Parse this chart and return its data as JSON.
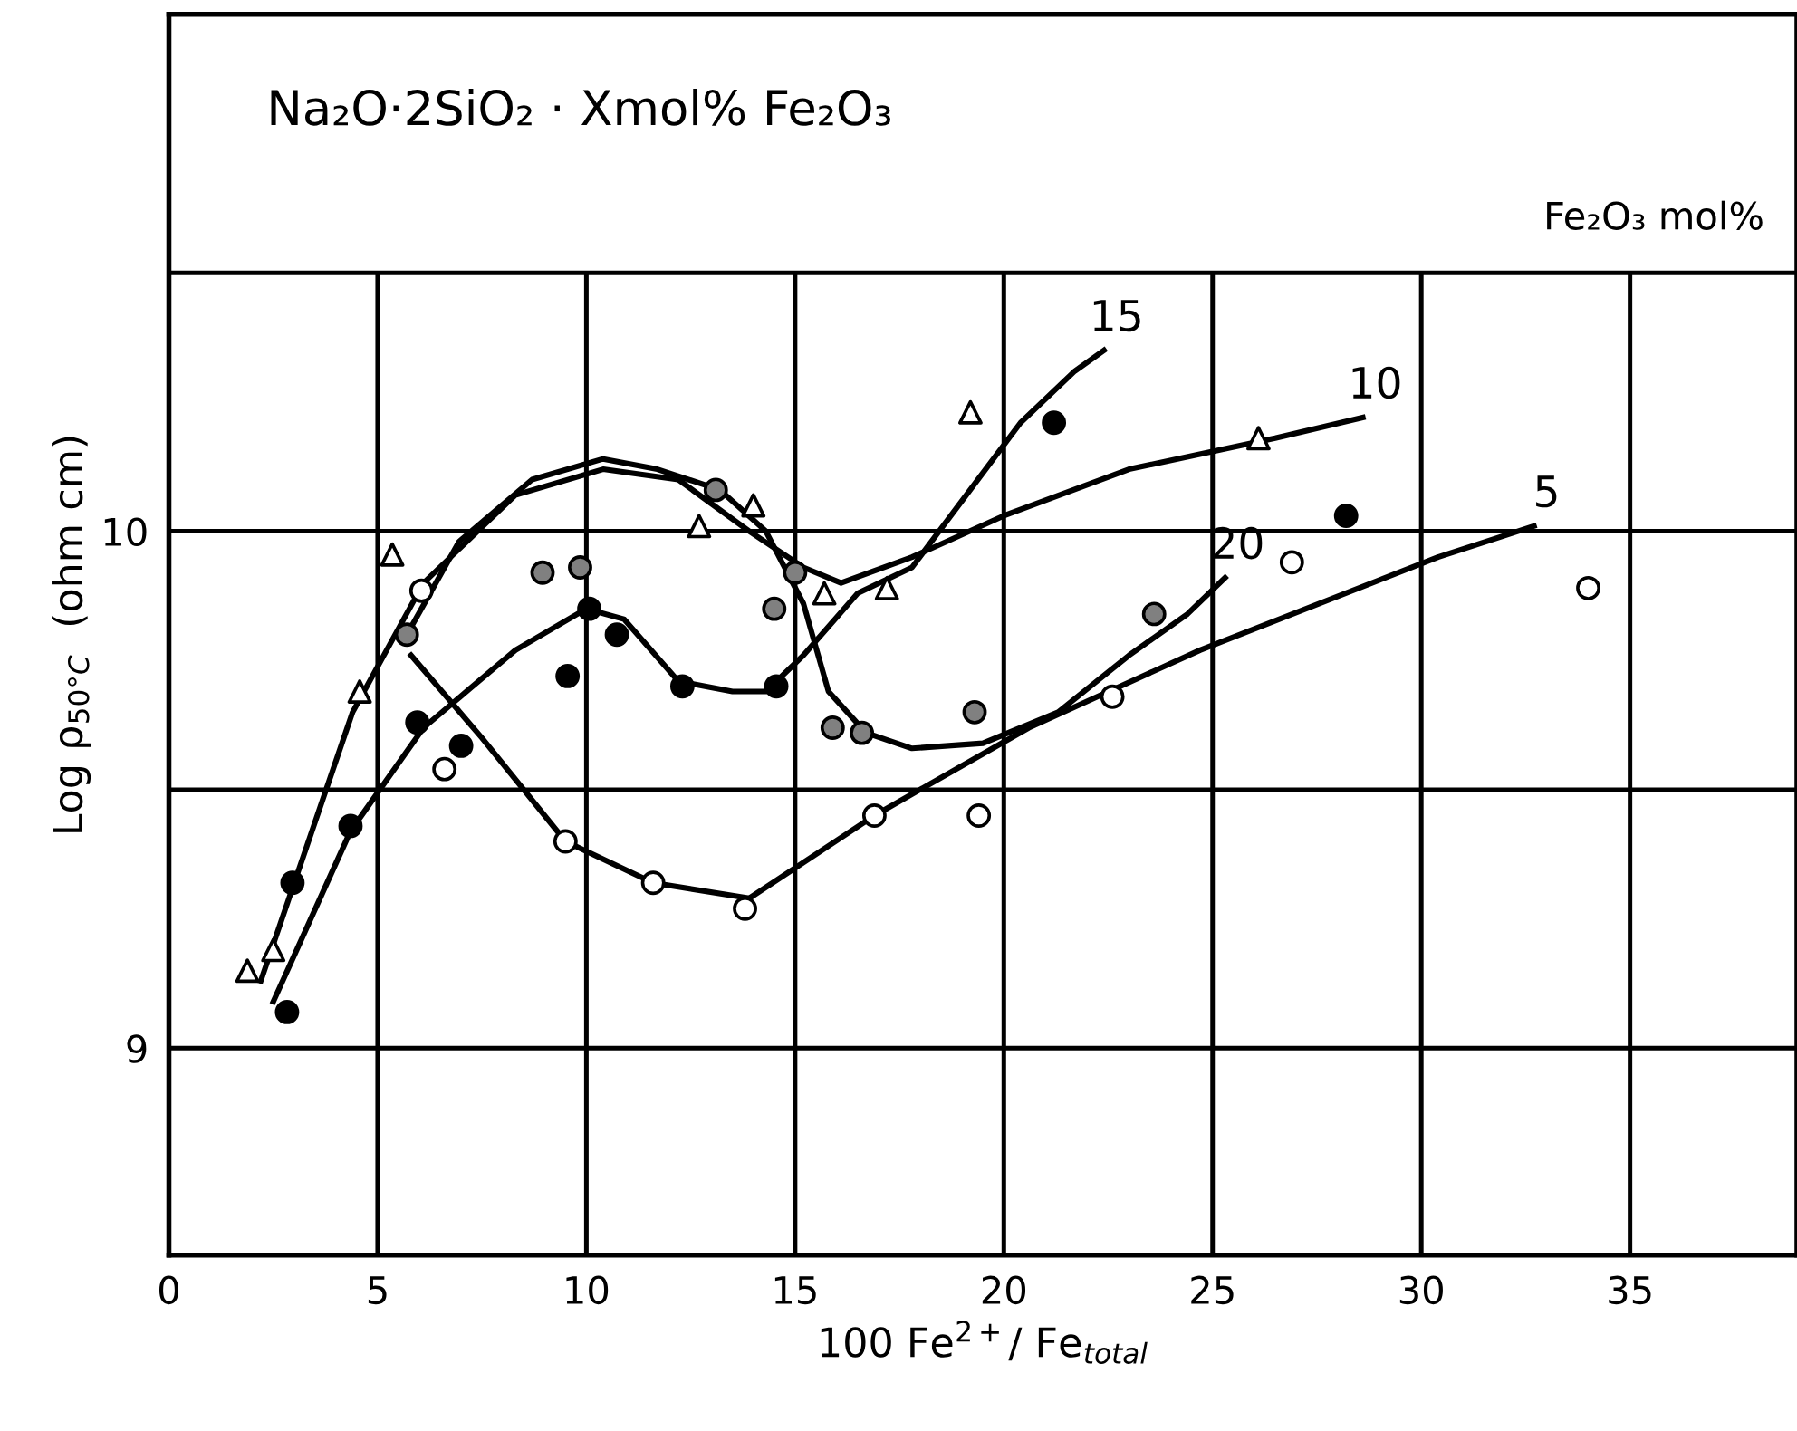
{
  "chart_data": {
    "type": "scatter",
    "title": "Na₂O·2SiO₂ · Xmol% Fe₂O₃",
    "legend_title": "Fe₂O₃ mol%",
    "xlabel": "100 Fe$^{2+}$/ Fe$_{total}$",
    "ylabel": "Log ρ$_{50°C}$  (ohm cm)",
    "xlim": [
      0,
      39
    ],
    "ylim": [
      8.6,
      11
    ],
    "xticks": [
      0,
      5,
      10,
      15,
      20,
      25,
      30,
      35
    ],
    "yticks": [
      9,
      {
        "value": 9.5,
        "label": null
      },
      10,
      {
        "value": 10.5,
        "label": null
      }
    ],
    "grid": true,
    "legend": false,
    "series": [
      {
        "marker": "circle",
        "color": "#ffffff",
        "x": [
          6.05,
          6.6,
          9.5,
          11.6,
          13.8,
          16.9,
          19.4,
          22.6,
          26.9,
          34.0
        ],
        "values": [
          9.885,
          9.54,
          9.4,
          9.32,
          9.27,
          9.45,
          9.45,
          9.68,
          9.94,
          9.89
        ]
      },
      {
        "marker": "triangle",
        "color": "#ffffff",
        "x": [
          1.88,
          2.5,
          4.57,
          5.35,
          12.7,
          14.0,
          15.7,
          17.2,
          19.2,
          26.1
        ],
        "values": [
          9.15,
          9.19,
          9.69,
          9.955,
          10.01,
          10.05,
          9.88,
          9.89,
          10.23,
          10.18
        ]
      },
      {
        "marker": "circle",
        "color": "#000000",
        "x": [
          2.83,
          2.96,
          4.35,
          5.95,
          7.0,
          9.55,
          10.07,
          10.73,
          12.3,
          14.55,
          21.2,
          28.2
        ],
        "values": [
          9.07,
          9.32,
          9.43,
          9.63,
          9.585,
          9.72,
          9.85,
          9.8,
          9.7,
          9.7,
          10.21,
          10.03
        ]
      },
      {
        "marker": "circle",
        "color": "#808080",
        "x": [
          5.7,
          8.95,
          9.85,
          13.1,
          14.5,
          15.0,
          15.9,
          16.6,
          19.3,
          23.6
        ],
        "values": [
          9.8,
          9.92,
          9.93,
          10.08,
          9.85,
          9.92,
          9.62,
          9.61,
          9.65,
          9.84
        ]
      },
      {
        "type": "line",
        "name": "5",
        "color": "#000000",
        "x": [
          5.8,
          7.5,
          9.5,
          11.6,
          13.9,
          16.9,
          20.6,
          24.7,
          30.4,
          32.7
        ],
        "values": [
          9.76,
          9.6,
          9.4,
          9.32,
          9.29,
          9.45,
          9.62,
          9.77,
          9.95,
          10.01
        ]
      },
      {
        "type": "line",
        "name": "10",
        "color": "#000000",
        "x": [
          2.2,
          4.4,
          6.1,
          8.3,
          10.4,
          12.2,
          13.9,
          15.2,
          16.1,
          17.8,
          20.0,
          23.0,
          26.5,
          28.6
        ],
        "values": [
          9.13,
          9.65,
          9.9,
          10.07,
          10.12,
          10.1,
          10.0,
          9.93,
          9.9,
          9.95,
          10.03,
          10.12,
          10.18,
          10.22
        ]
      },
      {
        "type": "line",
        "name": "15",
        "color": "#000000",
        "x": [
          2.5,
          4.35,
          6.1,
          8.3,
          10.0,
          10.9,
          12.2,
          13.5,
          14.3,
          15.2,
          16.5,
          17.8,
          19.1,
          20.4,
          21.7,
          22.4
        ],
        "values": [
          9.09,
          9.42,
          9.62,
          9.77,
          9.85,
          9.83,
          9.71,
          9.69,
          9.69,
          9.76,
          9.88,
          9.93,
          10.07,
          10.21,
          10.31,
          10.35
        ]
      },
      {
        "type": "line",
        "name": "20",
        "color": "#000000",
        "x": [
          5.7,
          6.95,
          8.7,
          10.4,
          11.7,
          13.2,
          14.3,
          15.2,
          15.8,
          16.7,
          17.8,
          19.5,
          21.3,
          23.0,
          24.4,
          25.3
        ],
        "values": [
          9.8,
          9.98,
          10.1,
          10.14,
          10.12,
          10.08,
          10.0,
          9.86,
          9.69,
          9.61,
          9.58,
          9.59,
          9.65,
          9.76,
          9.84,
          9.91
        ]
      }
    ]
  }
}
